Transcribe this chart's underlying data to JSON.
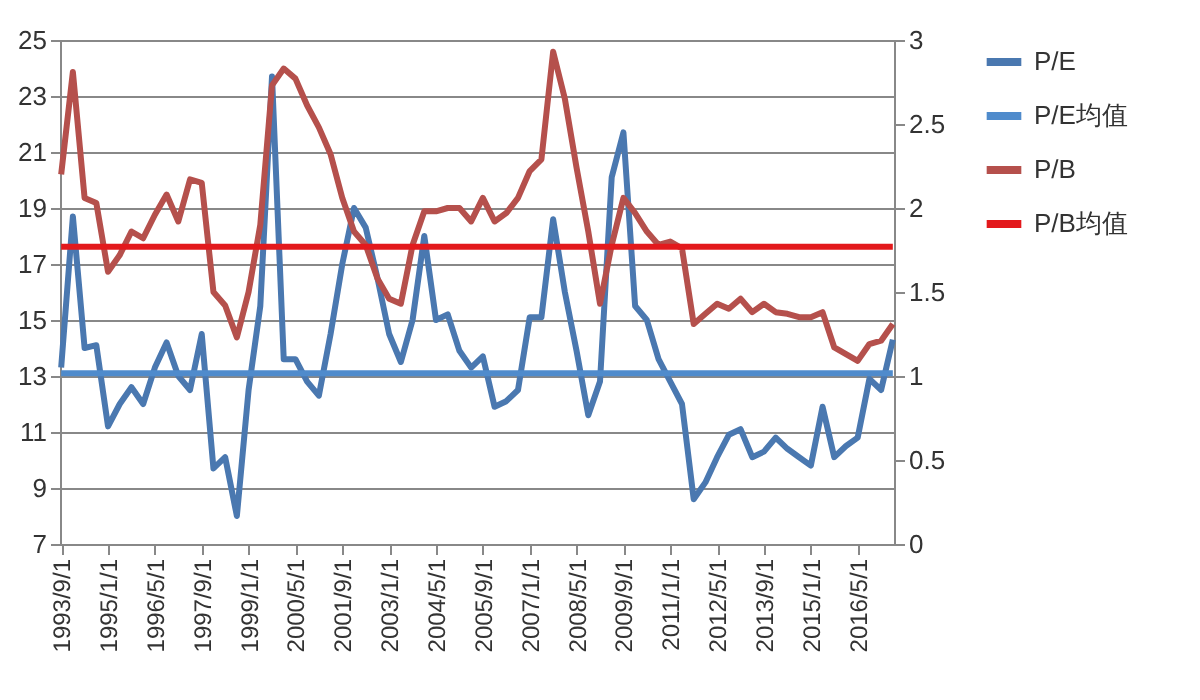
{
  "chart_data": {
    "type": "line",
    "categories": [
      "1993/9/1",
      null,
      null,
      null,
      "1995/1/1",
      null,
      null,
      null,
      "1996/5/1",
      null,
      null,
      null,
      "1997/9/1",
      null,
      null,
      null,
      "1999/1/1",
      null,
      null,
      null,
      "2000/5/1",
      null,
      null,
      null,
      "2001/9/1",
      null,
      null,
      null,
      "2003/1/1",
      null,
      null,
      null,
      "2004/5/1",
      null,
      null,
      null,
      "2005/9/1",
      null,
      null,
      null,
      "2007/1/1",
      null,
      null,
      null,
      "2008/5/1",
      null,
      null,
      null,
      "2009/9/1",
      null,
      null,
      null,
      "2011/1/1",
      null,
      null,
      null,
      "2012/5/1",
      null,
      null,
      null,
      "2013/9/1",
      null,
      null,
      null,
      "2015/1/1",
      null,
      null,
      null,
      "2016/5/1",
      null,
      null,
      null
    ],
    "series": [
      {
        "name": "P/E",
        "color": "#4a78b0",
        "values": [
          13.3,
          18.7,
          14.0,
          14.1,
          11.2,
          12.0,
          12.6,
          12.0,
          13.3,
          14.2,
          13.0,
          12.5,
          14.5,
          9.7,
          10.1,
          8.0,
          12.5,
          15.5,
          23.7,
          13.6,
          13.6,
          12.8,
          12.3,
          14.5,
          17.0,
          19.0,
          18.3,
          16.5,
          14.5,
          13.5,
          15.0,
          18.0,
          15.0,
          15.2,
          13.9,
          13.3,
          13.7,
          11.9,
          12.1,
          12.5,
          15.1,
          15.1,
          18.6,
          16.0,
          13.9,
          11.6,
          12.8,
          20.1,
          21.7,
          15.5,
          15.0,
          13.6,
          12.8,
          12.0,
          8.6,
          9.2,
          10.1,
          10.9,
          11.1,
          10.1,
          10.3,
          10.8,
          10.4,
          10.1,
          9.8,
          11.9,
          10.1,
          10.5,
          10.8,
          12.9,
          12.5,
          14.3
        ]
      },
      {
        "name": "P/E均值",
        "color": "#4f8bcc",
        "values": [
          13.1,
          13.1,
          13.1,
          13.1,
          13.1,
          13.1,
          13.1,
          13.1,
          13.1,
          13.1,
          13.1,
          13.1,
          13.1,
          13.1,
          13.1,
          13.1,
          13.1,
          13.1,
          13.1,
          13.1,
          13.1,
          13.1,
          13.1,
          13.1,
          13.1,
          13.1,
          13.1,
          13.1,
          13.1,
          13.1,
          13.1,
          13.1,
          13.1,
          13.1,
          13.1,
          13.1,
          13.1,
          13.1,
          13.1,
          13.1,
          13.1,
          13.1,
          13.1,
          13.1,
          13.1,
          13.1,
          13.1,
          13.1,
          13.1,
          13.1,
          13.1,
          13.1,
          13.1,
          13.1,
          13.1,
          13.1,
          13.1,
          13.1,
          13.1,
          13.1,
          13.1,
          13.1,
          13.1,
          13.1,
          13.1,
          13.1,
          13.1,
          13.1,
          13.1,
          13.1,
          13.1,
          13.1
        ]
      },
      {
        "name": "P/B",
        "color": "#b5504c",
        "axis": "y2",
        "values": [
          2.2,
          2.81,
          2.06,
          2.03,
          1.62,
          1.72,
          1.86,
          1.82,
          1.96,
          2.08,
          1.92,
          2.17,
          2.15,
          1.5,
          1.42,
          1.23,
          1.5,
          1.9,
          2.73,
          2.83,
          2.77,
          2.61,
          2.48,
          2.32,
          2.06,
          1.86,
          1.78,
          1.58,
          1.46,
          1.43,
          1.78,
          1.98,
          1.98,
          2.0,
          2.0,
          1.92,
          2.06,
          1.92,
          1.97,
          2.06,
          2.22,
          2.29,
          2.93,
          2.65,
          2.24,
          1.86,
          1.43,
          1.78,
          2.06,
          1.97,
          1.86,
          1.78,
          1.8,
          1.76,
          1.31,
          1.37,
          1.43,
          1.4,
          1.46,
          1.38,
          1.43,
          1.38,
          1.37,
          1.35,
          1.35,
          1.38,
          1.17,
          1.13,
          1.09,
          1.19,
          1.21,
          1.31
        ]
      },
      {
        "name": "P/B均值",
        "color": "#e3191c",
        "axis": "y2",
        "values": [
          1.77,
          1.77,
          1.77,
          1.77,
          1.77,
          1.77,
          1.77,
          1.77,
          1.77,
          1.77,
          1.77,
          1.77,
          1.77,
          1.77,
          1.77,
          1.77,
          1.77,
          1.77,
          1.77,
          1.77,
          1.77,
          1.77,
          1.77,
          1.77,
          1.77,
          1.77,
          1.77,
          1.77,
          1.77,
          1.77,
          1.77,
          1.77,
          1.77,
          1.77,
          1.77,
          1.77,
          1.77,
          1.77,
          1.77,
          1.77,
          1.77,
          1.77,
          1.77,
          1.77,
          1.77,
          1.77,
          1.77,
          1.77,
          1.77,
          1.77,
          1.77,
          1.77,
          1.77,
          1.77,
          1.77,
          1.77,
          1.77,
          1.77,
          1.77,
          1.77,
          1.77,
          1.77,
          1.77,
          1.77,
          1.77,
          1.77,
          1.77,
          1.77,
          1.77,
          1.77,
          1.77,
          1.77
        ]
      }
    ],
    "ylim": [
      7,
      25
    ],
    "yticks": [
      7,
      9,
      11,
      13,
      15,
      17,
      19,
      21,
      23,
      25
    ],
    "y2lim": [
      0,
      3
    ],
    "y2ticks": [
      0,
      0.5,
      1,
      1.5,
      2,
      2.5,
      3
    ],
    "grid": "y",
    "legend": "right"
  }
}
